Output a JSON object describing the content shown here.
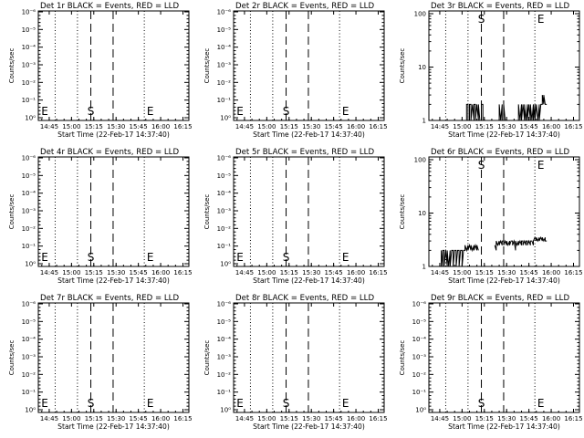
{
  "chart_data": [
    {
      "type": "line",
      "title": "Det 1r BLACK = Events, RED = LLD",
      "xlabel": "Start Time (22-Feb-17 14:37:40)",
      "ylabel": "Counts/sec",
      "x_ticks": [
        "14:45",
        "15:00",
        "15:15",
        "15:30",
        "15:45",
        "16:00",
        "16:15"
      ],
      "y_ticks": [
        "10⁰",
        "10⁻¹",
        "10⁻²",
        "10⁻³",
        "10⁻⁴",
        "10⁻⁵",
        "10⁻⁶"
      ],
      "scale": "decay",
      "markers": [
        {
          "text": "E",
          "x": "14:42"
        },
        {
          "text": "S",
          "x": "15:13"
        },
        {
          "text": "E",
          "x": "15:53"
        }
      ],
      "series": []
    },
    {
      "type": "line",
      "title": "Det 2r BLACK = Events, RED = LLD",
      "xlabel": "Start Time (22-Feb-17 14:37:40)",
      "ylabel": "Counts/sec",
      "x_ticks": [
        "14:45",
        "15:00",
        "15:15",
        "15:30",
        "15:45",
        "16:00",
        "16:15"
      ],
      "y_ticks": [
        "10⁰",
        "10⁻¹",
        "10⁻²",
        "10⁻³",
        "10⁻⁴",
        "10⁻⁵",
        "10⁻⁶"
      ],
      "scale": "decay",
      "markers": [
        {
          "text": "E",
          "x": "14:42"
        },
        {
          "text": "S",
          "x": "15:13"
        },
        {
          "text": "E",
          "x": "15:53"
        }
      ],
      "series": []
    },
    {
      "type": "line",
      "title": "Det 3r BLACK = Events, RED = LLD",
      "xlabel": "Start Time (22-Feb-17 14:37:40)",
      "ylabel": "Counts/sec",
      "x_ticks": [
        "14:45",
        "15:00",
        "15:15",
        "15:30",
        "15:45",
        "16:00",
        "16:15"
      ],
      "y_ticks": [
        "1",
        "10",
        "100"
      ],
      "scale": "log",
      "ylim": [
        1,
        100
      ],
      "markers": [
        {
          "text": "S",
          "x": "15:13"
        },
        {
          "text": "E",
          "x": "15:53"
        }
      ],
      "series": [
        {
          "color": "#000000",
          "points": [
            [
              "15:03",
              1
            ],
            [
              "15:03",
              2
            ],
            [
              "15:04",
              2
            ],
            [
              "15:04",
              1
            ],
            [
              "15:05",
              1
            ],
            [
              "15:05",
              2
            ],
            [
              "15:06",
              2
            ],
            [
              "15:06",
              1
            ],
            [
              "15:07",
              2
            ],
            [
              "15:08",
              1
            ],
            [
              "15:08",
              2
            ],
            [
              "15:09",
              2
            ],
            [
              "15:09",
              1
            ],
            [
              "15:10",
              2
            ],
            [
              "15:11",
              1
            ],
            [
              "15:11",
              2
            ],
            [
              "15:12",
              1
            ],
            [
              "15:13",
              1
            ],
            [
              "15:13",
              2
            ],
            [
              "15:14",
              2
            ],
            [
              "15:14",
              1
            ],
            [
              "15:25",
              1
            ],
            [
              "15:25",
              2
            ],
            [
              "15:26",
              1
            ],
            [
              "15:27",
              2
            ],
            [
              "15:27",
              1
            ],
            [
              "15:28",
              1
            ],
            [
              "15:28",
              2
            ],
            [
              "15:29",
              1
            ],
            [
              "15:38",
              1
            ],
            [
              "15:38",
              2
            ],
            [
              "15:39",
              1
            ],
            [
              "15:40",
              2
            ],
            [
              "15:40",
              1
            ],
            [
              "15:41",
              2
            ],
            [
              "15:42",
              1
            ],
            [
              "15:42",
              2
            ],
            [
              "15:43",
              1
            ],
            [
              "15:44",
              2
            ],
            [
              "15:44",
              1
            ],
            [
              "15:45",
              2
            ],
            [
              "15:46",
              1
            ],
            [
              "15:46",
              2
            ],
            [
              "15:47",
              1
            ],
            [
              "15:48",
              2
            ],
            [
              "15:48",
              1
            ],
            [
              "15:49",
              2
            ],
            [
              "15:49",
              1
            ],
            [
              "15:50",
              2
            ],
            [
              "15:51",
              1
            ],
            [
              "15:52",
              2
            ],
            [
              "15:52",
              1
            ],
            [
              "15:53",
              2
            ],
            [
              "15:53",
              2
            ],
            [
              "15:54",
              2
            ],
            [
              "15:54",
              3
            ],
            [
              "15:55",
              2
            ],
            [
              "15:55",
              3
            ],
            [
              "15:56",
              2
            ],
            [
              "15:57",
              2
            ]
          ]
        }
      ]
    },
    {
      "type": "line",
      "title": "Det 4r BLACK = Events, RED = LLD",
      "xlabel": "Start Time (22-Feb-17 14:37:40)",
      "ylabel": "Counts/sec",
      "x_ticks": [
        "14:45",
        "15:00",
        "15:15",
        "15:30",
        "15:45",
        "16:00",
        "16:15"
      ],
      "y_ticks": [
        "10⁰",
        "10⁻¹",
        "10⁻²",
        "10⁻³",
        "10⁻⁴",
        "10⁻⁵",
        "10⁻⁶"
      ],
      "scale": "decay",
      "markers": [
        {
          "text": "E",
          "x": "14:42"
        },
        {
          "text": "S",
          "x": "15:13"
        },
        {
          "text": "E",
          "x": "15:53"
        }
      ],
      "series": []
    },
    {
      "type": "line",
      "title": "Det 5r BLACK = Events, RED = LLD",
      "xlabel": "Start Time (22-Feb-17 14:37:40)",
      "ylabel": "Counts/sec",
      "x_ticks": [
        "14:45",
        "15:00",
        "15:15",
        "15:30",
        "15:45",
        "16:00",
        "16:15"
      ],
      "y_ticks": [
        "10⁰",
        "10⁻¹",
        "10⁻²",
        "10⁻³",
        "10⁻⁴",
        "10⁻⁵",
        "10⁻⁶"
      ],
      "scale": "decay",
      "markers": [
        {
          "text": "E",
          "x": "14:42"
        },
        {
          "text": "S",
          "x": "15:13"
        },
        {
          "text": "E",
          "x": "15:53"
        }
      ],
      "series": []
    },
    {
      "type": "line",
      "title": "Det 6r BLACK = Events, RED = LLD",
      "xlabel": "Start Time (22-Feb-17 14:37:40)",
      "ylabel": "Counts/sec",
      "x_ticks": [
        "14:45",
        "15:00",
        "15:15",
        "15:30",
        "15:45",
        "16:00",
        "16:15"
      ],
      "y_ticks": [
        "1",
        "10",
        "100"
      ],
      "scale": "log",
      "ylim": [
        1,
        100
      ],
      "markers": [
        {
          "text": "S",
          "x": "15:13"
        },
        {
          "text": "E",
          "x": "15:53"
        }
      ],
      "series": [
        {
          "color": "#000000",
          "points": [
            [
              "14:46",
              1
            ],
            [
              "14:46",
              2
            ],
            [
              "14:47",
              1
            ],
            [
              "14:47",
              2
            ],
            [
              "14:48",
              2
            ],
            [
              "14:48",
              1
            ],
            [
              "14:49",
              2
            ],
            [
              "14:50",
              1
            ],
            [
              "14:50",
              2
            ],
            [
              "14:51",
              1
            ],
            [
              "14:52",
              2
            ],
            [
              "14:52",
              1
            ],
            [
              "14:53",
              2
            ],
            [
              "14:54",
              2
            ],
            [
              "14:54",
              1
            ],
            [
              "14:55",
              2
            ],
            [
              "14:56",
              2
            ],
            [
              "14:56",
              1
            ],
            [
              "14:57",
              2
            ],
            [
              "14:58",
              2
            ],
            [
              "14:58",
              1
            ],
            [
              "14:59",
              2
            ],
            [
              "15:00",
              2
            ],
            [
              "15:00",
              1
            ],
            [
              "15:01",
              2
            ],
            [
              "15:02",
              2
            ],
            [
              "15:02",
              2.5
            ],
            [
              "15:03",
              2
            ],
            [
              "15:04",
              2.5
            ],
            [
              "15:04",
              2
            ],
            [
              "15:05",
              2.5
            ],
            [
              "15:06",
              2
            ],
            [
              "15:06",
              2.5
            ],
            [
              "15:07",
              2
            ],
            [
              "15:08",
              2.5
            ],
            [
              "15:08",
              2
            ],
            [
              "15:09",
              2.5
            ],
            [
              "15:10",
              2
            ],
            [
              "15:10",
              2.5
            ],
            [
              "15:11",
              2
            ],
            [
              "15:22",
              2.5
            ],
            [
              "15:23",
              2
            ],
            [
              "15:23",
              3
            ],
            [
              "15:24",
              2.5
            ],
            [
              "15:25",
              3
            ],
            [
              "15:25",
              2.5
            ],
            [
              "15:26",
              3
            ],
            [
              "15:27",
              2.5
            ],
            [
              "15:27",
              3
            ],
            [
              "15:28",
              3
            ],
            [
              "15:28",
              2.5
            ],
            [
              "15:29",
              3
            ],
            [
              "15:30",
              2.5
            ],
            [
              "15:30",
              3
            ],
            [
              "15:31",
              2.5
            ],
            [
              "15:32",
              3
            ],
            [
              "15:32",
              2.5
            ],
            [
              "15:33",
              3
            ],
            [
              "15:34",
              3
            ],
            [
              "15:34",
              2.5
            ],
            [
              "15:35",
              3
            ],
            [
              "15:36",
              2
            ],
            [
              "15:36",
              3
            ],
            [
              "15:37",
              2.5
            ],
            [
              "15:38",
              3
            ],
            [
              "15:38",
              2.5
            ],
            [
              "15:39",
              3
            ],
            [
              "15:40",
              2.5
            ],
            [
              "15:40",
              3
            ],
            [
              "15:41",
              3
            ],
            [
              "15:41",
              2.5
            ],
            [
              "15:42",
              3
            ],
            [
              "15:43",
              2.5
            ],
            [
              "15:43",
              3
            ],
            [
              "15:44",
              3
            ],
            [
              "15:44",
              2.5
            ],
            [
              "15:45",
              3
            ],
            [
              "15:46",
              2.5
            ],
            [
              "15:46",
              3
            ],
            [
              "15:47",
              3
            ],
            [
              "15:48",
              2.5
            ],
            [
              "15:48",
              3
            ],
            [
              "15:49",
              3.5
            ],
            [
              "15:50",
              3
            ],
            [
              "15:50",
              3.5
            ],
            [
              "15:51",
              3
            ],
            [
              "15:52",
              3.5
            ],
            [
              "15:52",
              3
            ],
            [
              "15:53",
              3.5
            ],
            [
              "15:54",
              3
            ],
            [
              "15:54",
              3.5
            ],
            [
              "15:55",
              3
            ],
            [
              "15:56",
              3.5
            ],
            [
              "15:56",
              3
            ],
            [
              "15:57",
              3
            ]
          ]
        }
      ]
    },
    {
      "type": "line",
      "title": "Det 7r BLACK = Events, RED = LLD",
      "xlabel": "Start Time (22-Feb-17 14:37:40)",
      "ylabel": "Counts/sec",
      "x_ticks": [
        "14:45",
        "15:00",
        "15:15",
        "15:30",
        "15:45",
        "16:00",
        "16:15"
      ],
      "y_ticks": [
        "10⁰",
        "10⁻¹",
        "10⁻²",
        "10⁻³",
        "10⁻⁴",
        "10⁻⁵",
        "10⁻⁶"
      ],
      "scale": "decay",
      "markers": [
        {
          "text": "E",
          "x": "14:42"
        },
        {
          "text": "S",
          "x": "15:13"
        },
        {
          "text": "E",
          "x": "15:53"
        }
      ],
      "series": []
    },
    {
      "type": "line",
      "title": "Det 8r BLACK = Events, RED = LLD",
      "xlabel": "Start Time (22-Feb-17 14:37:40)",
      "ylabel": "Counts/sec",
      "x_ticks": [
        "14:45",
        "15:00",
        "15:15",
        "15:30",
        "15:45",
        "16:00",
        "16:15"
      ],
      "y_ticks": [
        "10⁰",
        "10⁻¹",
        "10⁻²",
        "10⁻³",
        "10⁻⁴",
        "10⁻⁵",
        "10⁻⁶"
      ],
      "scale": "decay",
      "markers": [
        {
          "text": "E",
          "x": "14:42"
        },
        {
          "text": "S",
          "x": "15:13"
        },
        {
          "text": "E",
          "x": "15:53"
        }
      ],
      "series": []
    },
    {
      "type": "line",
      "title": "Det 9r BLACK = Events, RED = LLD",
      "xlabel": "Start Time (22-Feb-17 14:37:40)",
      "ylabel": "Counts/sec",
      "x_ticks": [
        "14:45",
        "15:00",
        "15:15",
        "15:30",
        "15:45",
        "16:00",
        "16:15"
      ],
      "y_ticks": [
        "10⁰",
        "10⁻¹",
        "10⁻²",
        "10⁻³",
        "10⁻⁴",
        "10⁻⁵",
        "10⁻⁶"
      ],
      "scale": "decay",
      "markers": [
        {
          "text": "S",
          "x": "15:13"
        },
        {
          "text": "E",
          "x": "15:53"
        }
      ],
      "series": []
    }
  ],
  "reference_lines": {
    "dotted": [
      "14:49",
      "15:04",
      "15:49",
      "16:19"
    ],
    "dashed": [
      "15:13",
      "15:28"
    ]
  },
  "colors": {
    "background": "#ffffff",
    "foreground": "#000000"
  }
}
